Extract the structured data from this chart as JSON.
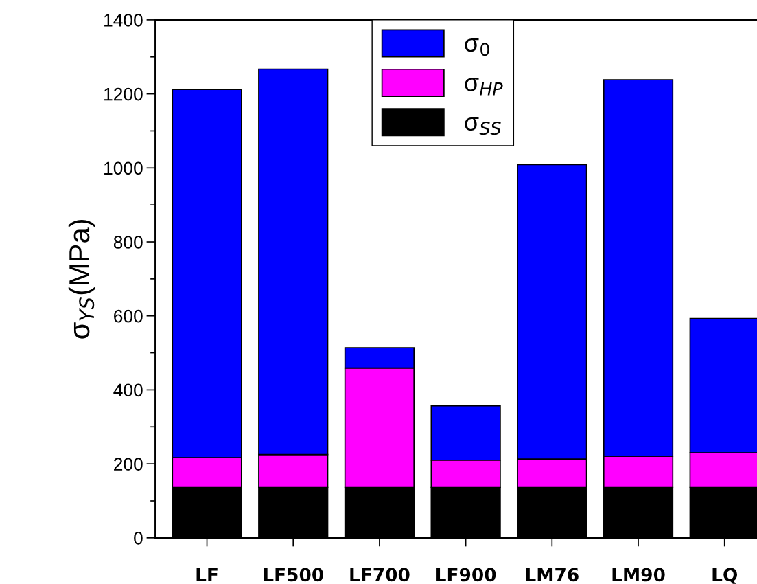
{
  "chart_data": {
    "type": "bar",
    "stacked": true,
    "ylabel": "σ$_{YS}$(MPa)",
    "categories": [
      "LF",
      "LF500",
      "LF700",
      "LF900",
      "LM76",
      "LM90",
      "LQ"
    ],
    "series": [
      {
        "name": "σ$_{SS}$",
        "color": "#000000",
        "values": [
          136,
          136,
          136,
          136,
          136,
          136,
          136
        ]
      },
      {
        "name": "σ$_{HP}$",
        "color": "#ff00ff",
        "values": [
          81,
          89,
          323,
          74,
          77,
          85,
          94
        ]
      },
      {
        "name": "σ$_{0}$",
        "color": "#0000ff",
        "values": [
          995,
          1042,
          55,
          147,
          796,
          1017,
          363
        ]
      }
    ],
    "ylim": [
      0,
      1400
    ],
    "yticks": [
      0,
      200,
      400,
      600,
      800,
      1000,
      1200,
      1400
    ],
    "grid": false,
    "legend": "top"
  }
}
